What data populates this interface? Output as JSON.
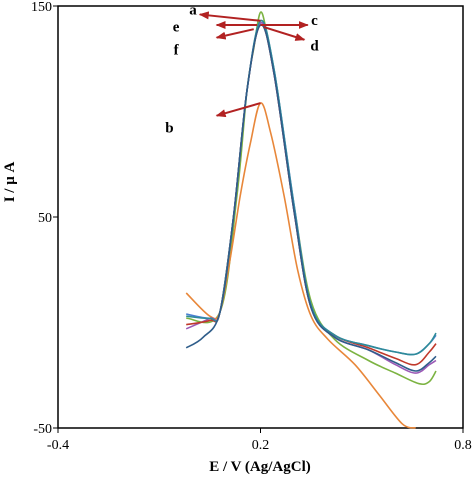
{
  "chart_data": {
    "type": "line",
    "title": "",
    "xlabel": "E / V (Ag/AgCl)",
    "ylabel": "I / μ A",
    "xlim": [
      -0.4,
      0.8
    ],
    "ylim": [
      -50,
      150
    ],
    "x_ticks": [
      {
        "value": -0.4,
        "label": "-0.4"
      },
      {
        "value": 0.2,
        "label": "0.2"
      },
      {
        "value": 0.8,
        "label": "0.8"
      }
    ],
    "y_ticks": [
      {
        "value": -50,
        "label": "-50"
      },
      {
        "value": 50,
        "label": "50"
      },
      {
        "value": 150,
        "label": "150"
      }
    ],
    "grid": false,
    "legend": "none",
    "series": [
      {
        "name": "a",
        "color": "#7cb342",
        "x": [
          -0.02,
          0.08,
          0.13,
          0.16,
          0.18,
          0.2,
          0.22,
          0.25,
          0.3,
          0.35,
          0.42,
          0.52,
          0.6,
          0.67,
          0.7,
          0.72
        ],
        "y": [
          2,
          5,
          60,
          110,
          130,
          147,
          136,
          110,
          55,
          10,
          -8,
          -18,
          -24,
          -29,
          -28,
          -23
        ]
      },
      {
        "name": "b",
        "color": "#e8873a",
        "x": [
          -0.02,
          0.05,
          0.08,
          0.11,
          0.14,
          0.17,
          0.2,
          0.23,
          0.27,
          0.31,
          0.35,
          0.4,
          0.48,
          0.55,
          0.62,
          0.66
        ],
        "y": [
          14,
          3,
          5,
          30,
          60,
          85,
          104,
          90,
          60,
          25,
          3,
          -8,
          -20,
          -34,
          -48,
          -50
        ]
      },
      {
        "name": "c",
        "color": "#4a7fd1",
        "x": [
          -0.02,
          0.05,
          0.08,
          0.12,
          0.16,
          0.2,
          0.24,
          0.3,
          0.35,
          0.42,
          0.52,
          0.6,
          0.66,
          0.7,
          0.72
        ],
        "y": [
          4,
          2,
          5,
          50,
          110,
          142,
          120,
          55,
          8,
          -6,
          -11,
          -14,
          -15,
          -10,
          -6
        ]
      },
      {
        "name": "d",
        "color": "#9b59b6",
        "x": [
          -0.02,
          0.05,
          0.08,
          0.12,
          0.16,
          0.2,
          0.24,
          0.3,
          0.35,
          0.42,
          0.52,
          0.6,
          0.66,
          0.7,
          0.72
        ],
        "y": [
          -3,
          2,
          5,
          50,
          110,
          142,
          118,
          52,
          7,
          -7,
          -13,
          -20,
          -24,
          -20,
          -18
        ]
      },
      {
        "name": "e",
        "color": "#c0392b",
        "x": [
          -0.02,
          0.05,
          0.08,
          0.12,
          0.16,
          0.2,
          0.24,
          0.3,
          0.35,
          0.42,
          0.52,
          0.6,
          0.66,
          0.7,
          0.72
        ],
        "y": [
          -1,
          1,
          5,
          50,
          110,
          141,
          118,
          52,
          7,
          -6,
          -12,
          -17,
          -20,
          -14,
          -10
        ]
      },
      {
        "name": "f",
        "color": "#2e8b99",
        "x": [
          -0.02,
          0.05,
          0.08,
          0.12,
          0.16,
          0.2,
          0.24,
          0.3,
          0.35,
          0.42,
          0.52,
          0.6,
          0.66,
          0.7,
          0.72
        ],
        "y": [
          3,
          2,
          5,
          50,
          110,
          143,
          120,
          54,
          8,
          -6,
          -11,
          -14,
          -15,
          -10,
          -5
        ]
      },
      {
        "name": "",
        "color": "#2f5d8a",
        "x": [
          -0.02,
          0.03,
          0.08,
          0.12,
          0.16,
          0.2,
          0.24,
          0.3,
          0.35,
          0.42,
          0.52,
          0.6,
          0.66,
          0.7,
          0.72
        ],
        "y": [
          -12,
          -7,
          5,
          50,
          110,
          141,
          118,
          52,
          7,
          -7,
          -13,
          -19,
          -23,
          -19,
          -16
        ]
      }
    ],
    "annotations": [
      {
        "text": "a",
        "x": 0.0,
        "y": 146,
        "arrow_from": [
          0.2,
          143
        ],
        "arrow_to": [
          0.02,
          146
        ]
      },
      {
        "text": "c",
        "x": 0.36,
        "y": 141,
        "arrow_from": [
          0.2,
          141
        ],
        "arrow_to": [
          0.34,
          141
        ]
      },
      {
        "text": "e",
        "x": -0.05,
        "y": 138,
        "arrow_from": [
          0.19,
          141
        ],
        "arrow_to": [
          0.07,
          141
        ]
      },
      {
        "text": "d",
        "x": 0.36,
        "y": 129,
        "arrow_from": [
          0.21,
          140
        ],
        "arrow_to": [
          0.33,
          134
        ]
      },
      {
        "text": "f",
        "x": -0.05,
        "y": 127,
        "arrow_from": [
          0.18,
          139
        ],
        "arrow_to": [
          0.07,
          135
        ]
      },
      {
        "text": "b",
        "x": -0.07,
        "y": 90,
        "arrow_from": [
          0.2,
          104
        ],
        "arrow_to": [
          0.07,
          98
        ]
      }
    ]
  }
}
